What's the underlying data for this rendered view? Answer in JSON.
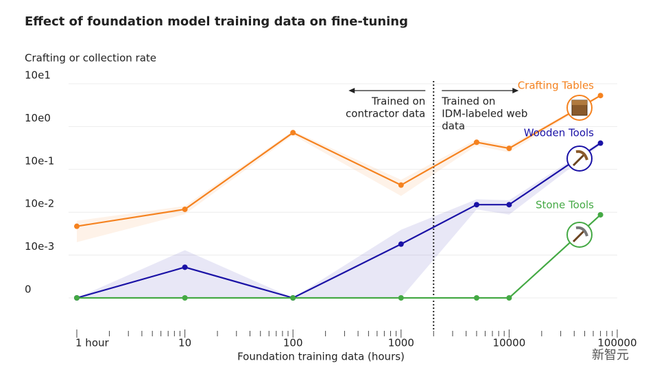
{
  "chart_data": {
    "type": "line",
    "title": "Effect of foundation model training data on fine-tuning",
    "y_label": "Crafting or collection rate",
    "x_label": "Foundation training data (hours)",
    "x_log": true,
    "y_log": true,
    "xlim": [
      1,
      100000
    ],
    "ylim": [
      0,
      10
    ],
    "xticks": [
      {
        "value": 1,
        "label": "1 hour"
      },
      10,
      100,
      1000,
      10000,
      100000
    ],
    "yticks": [
      {
        "value": 10,
        "label": "10e1"
      },
      {
        "value": 1,
        "label": "10e0"
      },
      {
        "value": 0.1,
        "label": "10e-1"
      },
      {
        "value": 0.01,
        "label": "10e-2"
      },
      {
        "value": 0.001,
        "label": "10e-3"
      },
      0
    ],
    "grid": true,
    "x": [
      1,
      10,
      100,
      1000,
      5000,
      10000,
      70000
    ],
    "series": [
      {
        "name": "Crafting Tables",
        "color": "#f5821f",
        "values": [
          0.0047,
          0.0117,
          0.72,
          0.043,
          0.43,
          0.31,
          5.3
        ],
        "band_upper": [
          0.0063,
          0.014,
          0.8,
          0.057,
          0.5,
          0.36,
          5.5
        ],
        "band_lower": [
          0.002,
          0.009,
          0.63,
          0.024,
          0.36,
          0.25,
          5
        ]
      },
      {
        "name": "Wooden Tools",
        "color": "#1a12a6",
        "values": [
          0,
          0.00052,
          0,
          0.0018,
          0.015,
          0.015,
          0.41
        ],
        "band_upper": [
          0,
          0.0013,
          0,
          0.0039,
          0.02,
          0.019,
          0.45
        ],
        "band_lower": [
          0,
          0,
          0,
          0,
          0.0117,
          0.0088,
          0.37
        ]
      },
      {
        "name": "Stone Tools",
        "color": "#44a944",
        "values": [
          0,
          0,
          0,
          0,
          0,
          0,
          0.0087
        ]
      }
    ],
    "divider_x": 2000,
    "annotations": [
      {
        "text": [
          "Trained on",
          "contractor data"
        ],
        "side": "left"
      },
      {
        "text": [
          "Trained on",
          "IDM-labeled web",
          "data"
        ],
        "side": "right"
      }
    ],
    "watermark": "新智元"
  }
}
